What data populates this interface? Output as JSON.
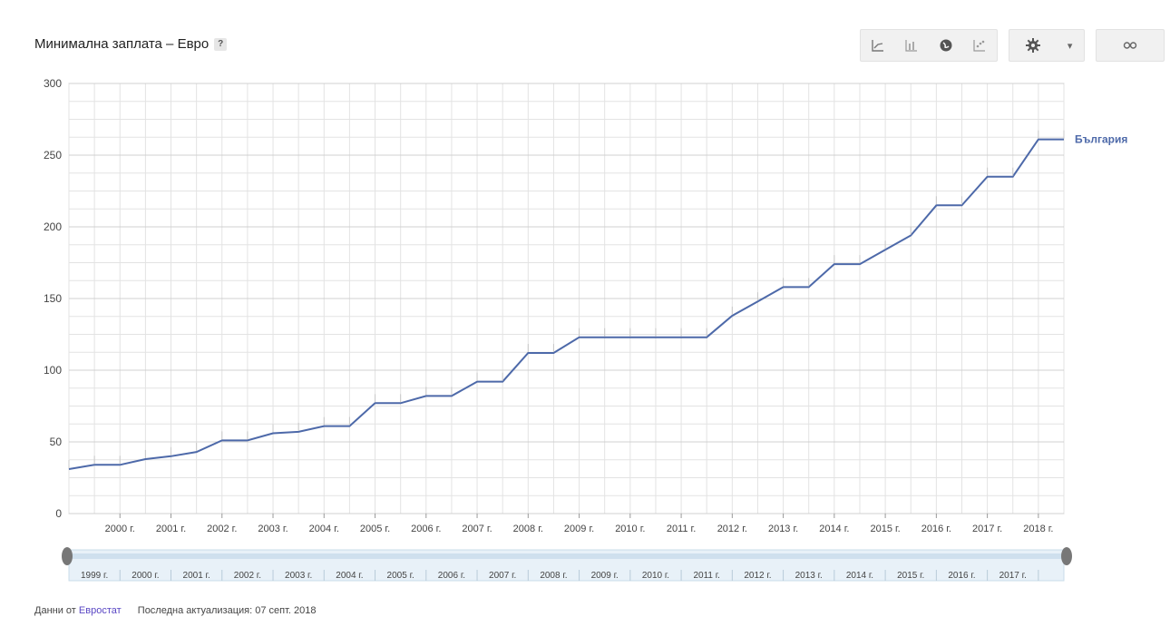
{
  "header": {
    "title": "Минимална заплата – Евро",
    "help_label": "?"
  },
  "toolbar": {
    "chart_types": [
      {
        "name": "line-chart-icon"
      },
      {
        "name": "bar-chart-icon"
      },
      {
        "name": "map-chart-icon"
      },
      {
        "name": "scatter-chart-icon"
      }
    ],
    "settings_icon": "gear-icon",
    "settings_caret": "▾",
    "link_icon": "link-icon"
  },
  "footer": {
    "source_prefix": "Данни от",
    "source_link": "Евростат",
    "updated": "Последна актуализация: 07 септ. 2018"
  },
  "colors": {
    "line": "#4d69a9",
    "grid": "#e3e3e3",
    "grid_major": "#d0d0d0",
    "slider_fill": "#e8f1f8",
    "slider_border": "#c9dcea"
  },
  "chart_data": {
    "type": "line",
    "title": "Минимална заплата – Евро",
    "ylim": [
      0,
      300
    ],
    "y_ticks": [
      0,
      50,
      100,
      150,
      200,
      250,
      300
    ],
    "xlim": [
      1999.0,
      2018.5
    ],
    "x_tick_labels": [
      {
        "year": 2000,
        "label": "2000 г."
      },
      {
        "year": 2001,
        "label": "2001 г."
      },
      {
        "year": 2002,
        "label": "2002 г."
      },
      {
        "year": 2003,
        "label": "2003 г."
      },
      {
        "year": 2004,
        "label": "2004 г."
      },
      {
        "year": 2005,
        "label": "2005 г."
      },
      {
        "year": 2006,
        "label": "2006 г."
      },
      {
        "year": 2007,
        "label": "2007 г."
      },
      {
        "year": 2008,
        "label": "2008 г."
      },
      {
        "year": 2009,
        "label": "2009 г."
      },
      {
        "year": 2010,
        "label": "2010 г."
      },
      {
        "year": 2011,
        "label": "2011 г."
      },
      {
        "year": 2012,
        "label": "2012 г."
      },
      {
        "year": 2013,
        "label": "2013 г."
      },
      {
        "year": 2014,
        "label": "2014 г."
      },
      {
        "year": 2015,
        "label": "2015 г."
      },
      {
        "year": 2016,
        "label": "2016 г."
      },
      {
        "year": 2017,
        "label": "2017 г."
      },
      {
        "year": 2018,
        "label": "2018 г."
      }
    ],
    "slider_labels": [
      {
        "year": 1999,
        "label": "1999 г."
      },
      {
        "year": 2000,
        "label": "2000 г."
      },
      {
        "year": 2001,
        "label": "2001 г."
      },
      {
        "year": 2002,
        "label": "2002 г."
      },
      {
        "year": 2003,
        "label": "2003 г."
      },
      {
        "year": 2004,
        "label": "2004 г."
      },
      {
        "year": 2005,
        "label": "2005 г."
      },
      {
        "year": 2006,
        "label": "2006 г."
      },
      {
        "year": 2007,
        "label": "2007 г."
      },
      {
        "year": 2008,
        "label": "2008 г."
      },
      {
        "year": 2009,
        "label": "2009 г."
      },
      {
        "year": 2010,
        "label": "2010 г."
      },
      {
        "year": 2011,
        "label": "2011 г."
      },
      {
        "year": 2012,
        "label": "2012 г."
      },
      {
        "year": 2013,
        "label": "2013 г."
      },
      {
        "year": 2014,
        "label": "2014 г."
      },
      {
        "year": 2015,
        "label": "2015 г."
      },
      {
        "year": 2016,
        "label": "2016 г."
      },
      {
        "year": 2017,
        "label": "2017 г."
      }
    ],
    "series": [
      {
        "name": "България",
        "points": [
          [
            1999.0,
            31
          ],
          [
            1999.5,
            34
          ],
          [
            2000.0,
            34
          ],
          [
            2000.5,
            38
          ],
          [
            2001.0,
            40
          ],
          [
            2001.5,
            43
          ],
          [
            2002.0,
            51
          ],
          [
            2002.5,
            51
          ],
          [
            2003.0,
            56
          ],
          [
            2003.5,
            57
          ],
          [
            2004.0,
            61
          ],
          [
            2004.5,
            61
          ],
          [
            2005.0,
            77
          ],
          [
            2005.5,
            77
          ],
          [
            2006.0,
            82
          ],
          [
            2006.5,
            82
          ],
          [
            2007.0,
            92
          ],
          [
            2007.5,
            92
          ],
          [
            2008.0,
            112
          ],
          [
            2008.5,
            112
          ],
          [
            2009.0,
            123
          ],
          [
            2009.5,
            123
          ],
          [
            2010.0,
            123
          ],
          [
            2010.5,
            123
          ],
          [
            2011.0,
            123
          ],
          [
            2011.5,
            123
          ],
          [
            2012.0,
            138
          ],
          [
            2012.5,
            148
          ],
          [
            2013.0,
            158
          ],
          [
            2013.5,
            158
          ],
          [
            2014.0,
            174
          ],
          [
            2014.5,
            174
          ],
          [
            2015.0,
            184
          ],
          [
            2015.5,
            194
          ],
          [
            2016.0,
            215
          ],
          [
            2016.5,
            215
          ],
          [
            2017.0,
            235
          ],
          [
            2017.5,
            235
          ],
          [
            2018.0,
            261
          ],
          [
            2018.5,
            261
          ]
        ]
      }
    ],
    "grid": true,
    "legend": "right-end-label"
  }
}
